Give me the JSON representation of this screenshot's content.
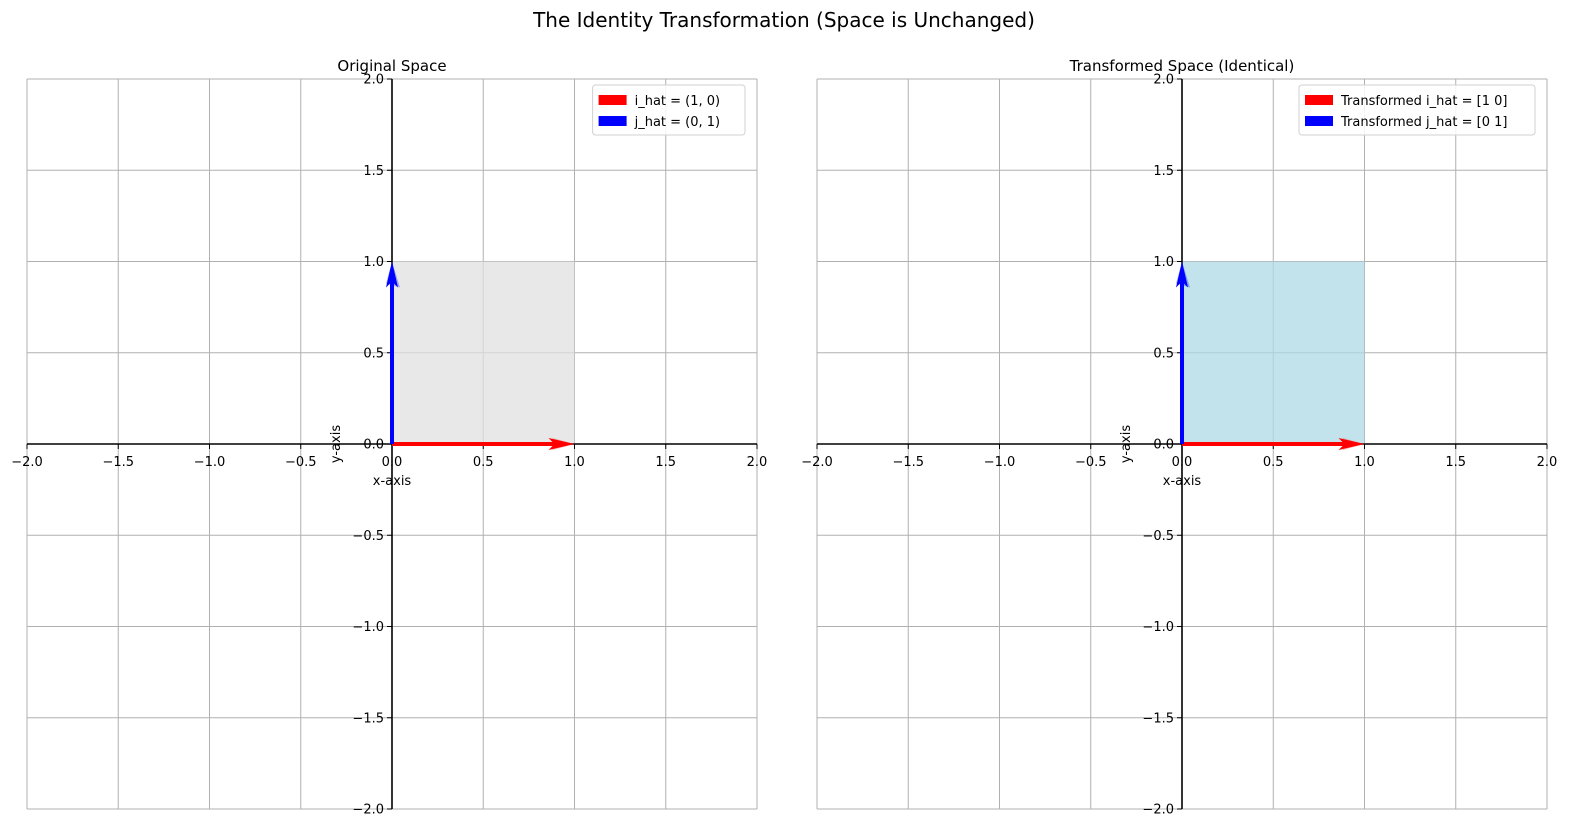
{
  "figure": {
    "title": "The Identity Transformation (Space is Unchanged)"
  },
  "chart_data": [
    {
      "type": "vector-plot",
      "title": "Original Space",
      "xlabel": "x-axis",
      "ylabel": "y-axis",
      "xlim": [
        -2.0,
        2.0
      ],
      "ylim": [
        -2.0,
        2.0
      ],
      "xticks": [
        -2.0,
        -1.5,
        -1.0,
        -0.5,
        0.0,
        0.5,
        1.0,
        1.5,
        2.0
      ],
      "yticks": [
        -2.0,
        -1.5,
        -1.0,
        -0.5,
        0.0,
        0.5,
        1.0,
        1.5,
        2.0
      ],
      "tick_labels": [
        "−2.0",
        "−1.5",
        "−1.0",
        "−0.5",
        "0.0",
        "0.5",
        "1.0",
        "1.5",
        "2.0"
      ],
      "grid": true,
      "legend_position": "top-right",
      "unit_square": {
        "x": [
          0,
          1,
          1,
          0
        ],
        "y": [
          0,
          0,
          1,
          1
        ],
        "color": "#e0e0e0"
      },
      "vectors": [
        {
          "name": "i_hat = (1, 0)",
          "x": 1,
          "y": 0,
          "color": "#ff0000"
        },
        {
          "name": "j_hat = (0, 1)",
          "x": 0,
          "y": 1,
          "color": "#0000ff"
        }
      ]
    },
    {
      "type": "vector-plot",
      "title": "Transformed Space (Identical)",
      "xlabel": "x-axis",
      "ylabel": "y-axis",
      "xlim": [
        -2.0,
        2.0
      ],
      "ylim": [
        -2.0,
        2.0
      ],
      "xticks": [
        -2.0,
        -1.5,
        -1.0,
        -0.5,
        0.0,
        0.5,
        1.0,
        1.5,
        2.0
      ],
      "yticks": [
        -2.0,
        -1.5,
        -1.0,
        -0.5,
        0.0,
        0.5,
        1.0,
        1.5,
        2.0
      ],
      "tick_labels": [
        "−2.0",
        "−1.5",
        "−1.0",
        "−0.5",
        "0.0",
        "0.5",
        "1.0",
        "1.5",
        "2.0"
      ],
      "grid": true,
      "legend_position": "top-right",
      "unit_square": {
        "x": [
          0,
          1,
          1,
          0
        ],
        "y": [
          0,
          0,
          1,
          1
        ],
        "color": "#add8e6"
      },
      "vectors": [
        {
          "name": "Transformed i_hat = [1 0]",
          "x": 1,
          "y": 0,
          "color": "#ff0000"
        },
        {
          "name": "Transformed j_hat = [0 1]",
          "x": 0,
          "y": 1,
          "color": "#0000ff"
        }
      ]
    }
  ]
}
